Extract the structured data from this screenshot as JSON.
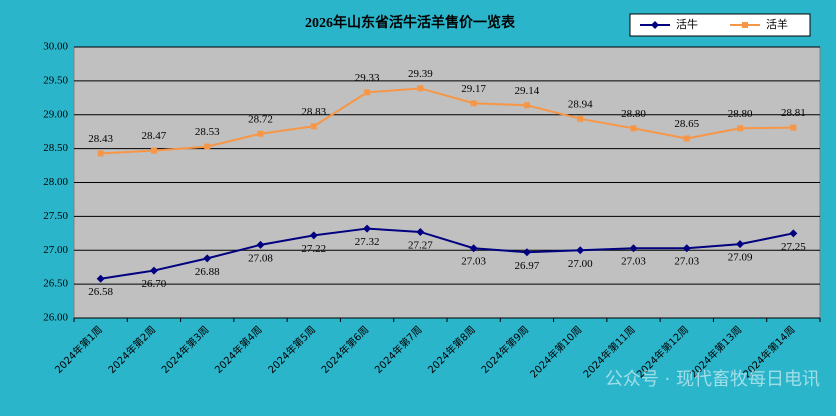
{
  "chart_data": {
    "type": "line",
    "title": "2026年山东省活牛活羊售价一览表",
    "categories": [
      "2024年第1周",
      "2024年第2周",
      "2024年第3周",
      "2024年第4周",
      "2024年第5周",
      "2024年第6周",
      "2024年第7周",
      "2024年第8周",
      "2024年第9周",
      "2024年第10周",
      "2024年第11周",
      "2024年第12周",
      "2024年第13周",
      "2024年第14周"
    ],
    "series": [
      {
        "name": "活牛",
        "color": "#000080",
        "values": [
          26.58,
          26.7,
          26.88,
          27.08,
          27.22,
          27.32,
          27.27,
          27.03,
          26.97,
          27,
          27.03,
          27.03,
          27.09,
          27.25
        ],
        "value_labels": [
          "26.58",
          "26.70",
          "26.88",
          "27.08",
          "27.22",
          "27.32",
          "27.27",
          "27.03",
          "26.97",
          "27.00",
          "27.03",
          "27.03",
          "27.09",
          "27.25"
        ]
      },
      {
        "name": "活羊",
        "color": "#f79646",
        "values": [
          28.43,
          28.47,
          28.53,
          28.72,
          28.83,
          29.33,
          29.39,
          29.17,
          29.14,
          28.94,
          28.8,
          28.65,
          28.8,
          28.81
        ],
        "value_labels": [
          "28.43",
          "28.47",
          "28.53",
          "28.72",
          "28.83",
          "29.33",
          "29.39",
          "29.17",
          "29.14",
          "28.94",
          "28.80",
          "28.65",
          "28.80",
          "28.81"
        ]
      }
    ],
    "ylim": [
      26,
      30
    ],
    "yticks": [
      {
        "value": 26,
        "label": "26.00"
      },
      {
        "value": 26.5,
        "label": "26.50"
      },
      {
        "value": 27,
        "label": "27.00"
      },
      {
        "value": 27.5,
        "label": "27.50"
      },
      {
        "value": 28,
        "label": "28.00"
      },
      {
        "value": 28.5,
        "label": "28.50"
      },
      {
        "value": 29,
        "label": "29.00"
      },
      {
        "value": 29.5,
        "label": "29.50"
      },
      {
        "value": 30,
        "label": "30.00"
      }
    ],
    "grid": true,
    "legend": "top-right",
    "watermark": "公众号 · 现代畜牧每日电讯"
  }
}
